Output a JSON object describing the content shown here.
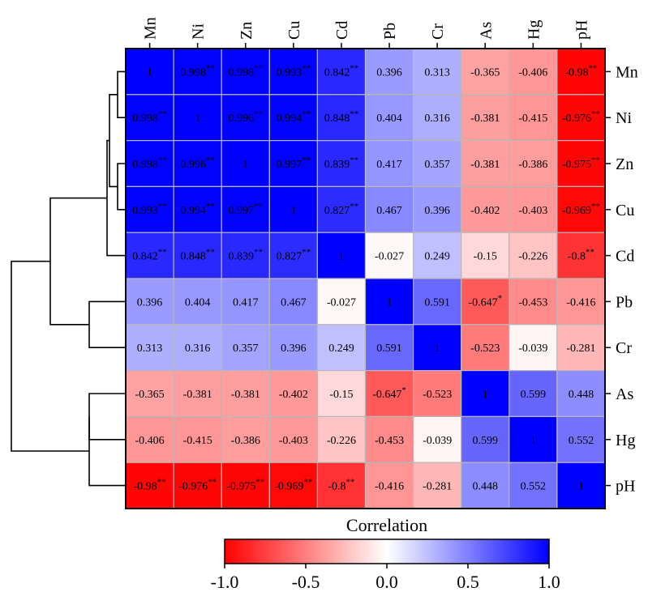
{
  "chart_data": {
    "type": "heatmap",
    "variables": [
      "Mn",
      "Ni",
      "Zn",
      "Cu",
      "Cd",
      "Pb",
      "Cr",
      "As",
      "Hg",
      "pH"
    ],
    "matrix": [
      [
        1,
        0.998,
        0.998,
        0.993,
        0.842,
        0.396,
        0.313,
        -0.365,
        -0.406,
        -0.98
      ],
      [
        0.998,
        1,
        0.996,
        0.994,
        0.848,
        0.404,
        0.316,
        -0.381,
        -0.415,
        -0.976
      ],
      [
        0.998,
        0.996,
        1,
        0.997,
        0.839,
        0.417,
        0.357,
        -0.381,
        -0.386,
        -0.975
      ],
      [
        0.993,
        0.994,
        0.997,
        1,
        0.827,
        0.467,
        0.396,
        -0.402,
        -0.403,
        -0.969
      ],
      [
        0.842,
        0.848,
        0.839,
        0.827,
        1,
        -0.027,
        0.249,
        -0.15,
        -0.226,
        -0.8
      ],
      [
        0.396,
        0.404,
        0.417,
        0.467,
        -0.027,
        1,
        0.591,
        -0.647,
        -0.453,
        -0.416
      ],
      [
        0.313,
        0.316,
        0.357,
        0.396,
        0.249,
        0.591,
        1,
        -0.523,
        -0.039,
        -0.281
      ],
      [
        -0.365,
        -0.381,
        -0.381,
        -0.402,
        -0.15,
        -0.647,
        -0.523,
        1,
        0.599,
        0.448
      ],
      [
        -0.406,
        -0.415,
        -0.386,
        -0.403,
        -0.226,
        -0.453,
        -0.039,
        0.599,
        1,
        0.552
      ],
      [
        -0.98,
        -0.976,
        -0.975,
        -0.969,
        -0.8,
        -0.416,
        -0.281,
        0.448,
        0.552,
        1
      ]
    ],
    "cell_labels": [
      [
        "1",
        "0.998",
        "0.998",
        "0.993",
        "0.842",
        "0.396",
        "0.313",
        "-0.365",
        "-0.406",
        "-0.98"
      ],
      [
        "0.998",
        "1",
        "0.996",
        "0.994",
        "0.848",
        "0.404",
        "0.316",
        "-0.381",
        "-0.415",
        "-0.976"
      ],
      [
        "0.998",
        "0.996",
        "1",
        "0.997",
        "0.839",
        "0.417",
        "0.357",
        "-0.381",
        "-0.386",
        "-0.975"
      ],
      [
        "0.993",
        "0.994",
        "0.997",
        "1",
        "0.827",
        "0.467",
        "0.396",
        "-0.402",
        "-0.403",
        "-0.969"
      ],
      [
        "0.842",
        "0.848",
        "0.839",
        "0.827",
        "1",
        "-0.027",
        "0.249",
        "-0.15",
        "-0.226",
        "-0.8"
      ],
      [
        "0.396",
        "0.404",
        "0.417",
        "0.467",
        "-0.027",
        "1",
        "0.591",
        "-0.647",
        "-0.453",
        "-0.416"
      ],
      [
        "0.313",
        "0.316",
        "0.357",
        "0.396",
        "0.249",
        "0.591",
        "1",
        "-0.523",
        "-0.039",
        "-0.281"
      ],
      [
        "-0.365",
        "-0.381",
        "-0.381",
        "-0.402",
        "-0.15",
        "-0.647",
        "-0.523",
        "1",
        "0.599",
        "0.448"
      ],
      [
        "-0.406",
        "-0.415",
        "-0.386",
        "-0.403",
        "-0.226",
        "-0.453",
        "-0.039",
        "0.599",
        "1",
        "0.552"
      ],
      [
        "-0.98",
        "-0.976",
        "-0.975",
        "-0.969",
        "-0.8",
        "-0.416",
        "-0.281",
        "0.448",
        "0.552",
        "1"
      ]
    ],
    "significance": [
      [
        "",
        "**",
        "**",
        "**",
        "**",
        "",
        "",
        "",
        "",
        "**"
      ],
      [
        "**",
        "",
        "**",
        "**",
        "**",
        "",
        "",
        "",
        "",
        "**"
      ],
      [
        "**",
        "**",
        "",
        "**",
        "**",
        "",
        "",
        "",
        "",
        "**"
      ],
      [
        "**",
        "**",
        "**",
        "",
        "**",
        "",
        "",
        "",
        "",
        "**"
      ],
      [
        "**",
        "**",
        "**",
        "**",
        "",
        "",
        "",
        "",
        "",
        "**"
      ],
      [
        "",
        "",
        "",
        "",
        "",
        "",
        "",
        "*",
        "",
        ""
      ],
      [
        "",
        "",
        "",
        "",
        "",
        "",
        "",
        "",
        "",
        ""
      ],
      [
        "",
        "",
        "",
        "",
        "",
        "*",
        "",
        "",
        "",
        ""
      ],
      [
        "",
        "",
        "",
        "",
        "",
        "",
        "",
        "",
        "",
        ""
      ],
      [
        "**",
        "**",
        "**",
        "**",
        "**",
        "",
        "",
        "",
        "",
        ""
      ]
    ],
    "dendrogram": {
      "side": "left",
      "merges": [
        {
          "left": "Mn",
          "right": "Ni"
        },
        {
          "left": "Zn",
          "right": "Cu"
        },
        {
          "left": "Mn+Ni",
          "right": "Zn+Cu"
        },
        {
          "left": "Mn+Ni+Zn+Cu",
          "right": "Cd"
        },
        {
          "left": "Pb",
          "right": "Cr"
        },
        {
          "left": "As",
          "right": "Hg"
        },
        {
          "left": "As+Hg",
          "right": "pH"
        },
        {
          "left": "Mn+Ni+Zn+Cu+Cd",
          "right": "Pb+Cr"
        },
        {
          "left": "Mn+Ni+Zn+Cu+Cd+Pb+Cr",
          "right": "As+Hg+pH"
        }
      ]
    },
    "colorscale": {
      "title": "Correlation",
      "min": -1.0,
      "max": 1.0,
      "colors": [
        "#ff0000",
        "#ffffff",
        "#0000ff"
      ],
      "ticks": [
        "-1.0",
        "-0.5",
        "0.0",
        "0.5",
        "1.0"
      ],
      "orientation": "horizontal",
      "placement": "bottom"
    }
  }
}
